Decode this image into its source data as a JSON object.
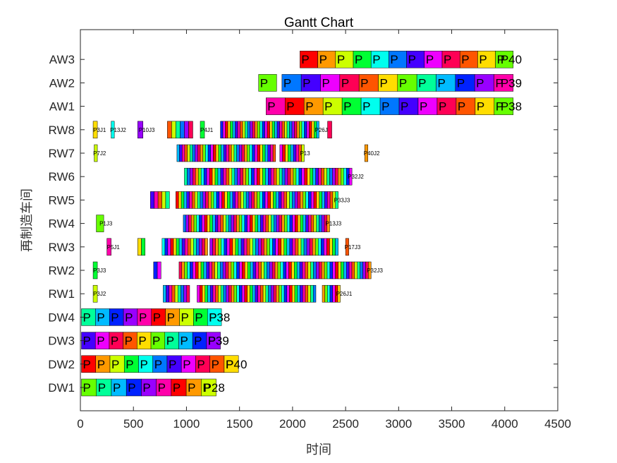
{
  "chart_data": {
    "type": "gantt",
    "title": "Gantt Chart",
    "xlabel": "时间",
    "ylabel": "再制造车间",
    "xlim": [
      0,
      4500
    ],
    "xticks": [
      "0",
      "500",
      "1000",
      "1500",
      "2000",
      "2500",
      "3000",
      "3500",
      "4000",
      "4500"
    ],
    "rows": [
      "DW1",
      "DW2",
      "DW3",
      "DW4",
      "RW1",
      "RW2",
      "RW3",
      "RW4",
      "RW5",
      "RW6",
      "RW7",
      "RW8",
      "AW1",
      "AW2",
      "AW3"
    ],
    "tasks": [
      {
        "row": "AW3",
        "start": 2070,
        "end": 4080,
        "count": 12,
        "end_label": "P40"
      },
      {
        "row": "AW2",
        "start": 1680,
        "end": 1850,
        "count": 1,
        "end_label": ""
      },
      {
        "row": "AW2",
        "start": 1900,
        "end": 4080,
        "count": 12,
        "end_label": "P39"
      },
      {
        "row": "AW1",
        "start": 1750,
        "end": 4080,
        "count": 13,
        "end_label": "P38"
      },
      {
        "row": "RW8",
        "start": 120,
        "end": 160,
        "count": 1,
        "end_label": "P3J1"
      },
      {
        "row": "RW8",
        "start": 290,
        "end": 320,
        "count": 1,
        "end_label": "P13J2"
      },
      {
        "row": "RW8",
        "start": 540,
        "end": 590,
        "count": 1,
        "end_label": "P10J3"
      },
      {
        "row": "RW8",
        "start": 820,
        "end": 1060,
        "count": 6,
        "end_label": ""
      },
      {
        "row": "RW8",
        "start": 1130,
        "end": 1170,
        "count": 1,
        "end_label": "P4J1"
      },
      {
        "row": "RW8",
        "start": 1320,
        "end": 2250,
        "count": 40,
        "end_label": "P26J2"
      },
      {
        "row": "RW8",
        "start": 2330,
        "end": 2370,
        "count": 1,
        "end_label": ""
      },
      {
        "row": "RW7",
        "start": 130,
        "end": 160,
        "count": 1,
        "end_label": "P7J2"
      },
      {
        "row": "RW7",
        "start": 910,
        "end": 1840,
        "count": 38,
        "end_label": ""
      },
      {
        "row": "RW7",
        "start": 1880,
        "end": 2110,
        "count": 9,
        "end_label": "P13"
      },
      {
        "row": "RW7",
        "start": 2680,
        "end": 2710,
        "count": 1,
        "end_label": "P40J2"
      },
      {
        "row": "RW6",
        "start": 980,
        "end": 2560,
        "count": 60,
        "end_label": "P32J2"
      },
      {
        "row": "RW5",
        "start": 660,
        "end": 840,
        "count": 5,
        "end_label": ""
      },
      {
        "row": "RW5",
        "start": 900,
        "end": 2430,
        "count": 60,
        "end_label": "P33J3"
      },
      {
        "row": "RW4",
        "start": 150,
        "end": 220,
        "count": 1,
        "end_label": "P1J3"
      },
      {
        "row": "RW4",
        "start": 970,
        "end": 2350,
        "count": 55,
        "end_label": "P13J3"
      },
      {
        "row": "RW3",
        "start": 250,
        "end": 290,
        "count": 1,
        "end_label": "P5J1"
      },
      {
        "row": "RW3",
        "start": 540,
        "end": 610,
        "count": 2,
        "end_label": ""
      },
      {
        "row": "RW3",
        "start": 770,
        "end": 1200,
        "count": 16,
        "end_label": ""
      },
      {
        "row": "RW3",
        "start": 1220,
        "end": 2430,
        "count": 45,
        "end_label": ""
      },
      {
        "row": "RW3",
        "start": 2500,
        "end": 2530,
        "count": 1,
        "end_label": "P17J3"
      },
      {
        "row": "RW2",
        "start": 120,
        "end": 160,
        "count": 1,
        "end_label": "P3J3"
      },
      {
        "row": "RW2",
        "start": 690,
        "end": 760,
        "count": 2,
        "end_label": ""
      },
      {
        "row": "RW2",
        "start": 930,
        "end": 2740,
        "count": 70,
        "end_label": "P32J3"
      },
      {
        "row": "RW1",
        "start": 120,
        "end": 160,
        "count": 1,
        "end_label": "P3J2"
      },
      {
        "row": "RW1",
        "start": 780,
        "end": 1030,
        "count": 9,
        "end_label": ""
      },
      {
        "row": "RW1",
        "start": 1100,
        "end": 2220,
        "count": 45,
        "end_label": ""
      },
      {
        "row": "RW1",
        "start": 2280,
        "end": 2450,
        "count": 7,
        "end_label": "P26J1"
      },
      {
        "row": "DW4",
        "start": 10,
        "end": 1330,
        "count": 10,
        "end_label": "P38"
      },
      {
        "row": "DW3",
        "start": 10,
        "end": 1320,
        "count": 10,
        "end_label": "P39"
      },
      {
        "row": "DW2",
        "start": 10,
        "end": 1490,
        "count": 11,
        "end_label": "P40"
      },
      {
        "row": "DW1",
        "start": 10,
        "end": 1280,
        "count": 9,
        "end_label": "P28"
      }
    ],
    "palette": [
      "#ff0000",
      "#ff5500",
      "#ff9900",
      "#ffdd00",
      "#ccff00",
      "#66ff00",
      "#00ff33",
      "#00ff99",
      "#00ffee",
      "#00bbff",
      "#0077ff",
      "#0022ff",
      "#4400ff",
      "#9900ff",
      "#ee00ff",
      "#ff00aa",
      "#ff0055"
    ]
  }
}
